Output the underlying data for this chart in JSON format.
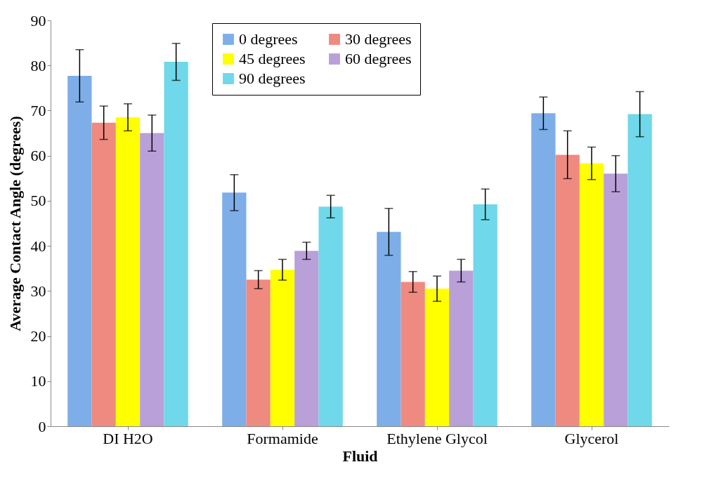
{
  "chart_data": {
    "type": "bar",
    "xlabel": "Fluid",
    "ylabel": "Average Contact Angle (degrees)",
    "categories": [
      "DI H2O",
      "Formamide",
      "Ethylene Glycol",
      "Glycerol"
    ],
    "series": [
      {
        "name": "0 degrees",
        "color": "#7eaee8",
        "values": [
          77.7,
          51.8,
          43.1,
          69.4
        ],
        "errors": [
          5.8,
          4,
          5.2,
          3.6
        ]
      },
      {
        "name": "30 degrees",
        "color": "#ef8a80",
        "values": [
          67.3,
          32.5,
          32,
          60.2
        ],
        "errors": [
          3.7,
          2,
          2.3,
          5.3
        ]
      },
      {
        "name": "45 degrees",
        "color": "#ffff00",
        "values": [
          68.5,
          34.7,
          30.5,
          58.3
        ],
        "errors": [
          3,
          2.3,
          2.8,
          3.6
        ]
      },
      {
        "name": "60 degrees",
        "color": "#b9a0d8",
        "values": [
          65,
          38.9,
          34.5,
          56
        ],
        "errors": [
          4,
          1.9,
          2.5,
          4
        ]
      },
      {
        "name": "90 degrees",
        "color": "#6fd8ea",
        "values": [
          80.8,
          48.7,
          49.2,
          69.2
        ],
        "errors": [
          4.1,
          2.5,
          3.4,
          5
        ]
      }
    ],
    "ylim": [
      0,
      90
    ],
    "yticks": [
      0,
      10,
      20,
      30,
      40,
      50,
      60,
      70,
      80,
      90
    ],
    "grid": false,
    "legend": "top"
  }
}
